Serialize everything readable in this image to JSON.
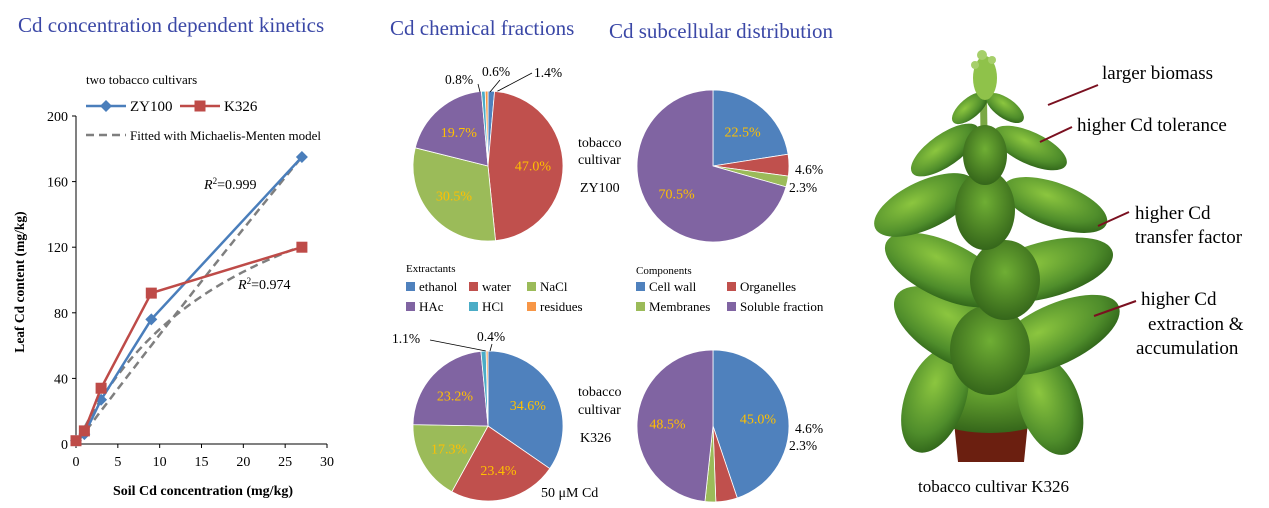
{
  "titles": {
    "kinetics": "Cd concentration dependent kinetics",
    "fractions": "Cd chemical fractions",
    "subcellular": "Cd subcellular  distribution"
  },
  "line_chart_labels": {
    "legend_title": "two tobacco cultivars",
    "fitted_label": "Fitted with Michaelis-Menten model",
    "r2_zy100": "0.999",
    "r2_k326": "0.974"
  },
  "pie_labels": {
    "extractants_title": "Extractants",
    "components_title": "Components",
    "cultivar_word_1": "tobacco",
    "cultivar_word_2": "cultivar",
    "zy100": "ZY100",
    "k326": "K326",
    "treatment": "50 μM Cd"
  },
  "plant": {
    "annotations": [
      "larger biomass",
      "higher Cd tolerance",
      "higher Cd",
      "transfer factor",
      "higher Cd",
      "extraction &",
      "accumulation"
    ],
    "caption": "tobacco cultivar K326"
  },
  "colors": {
    "title": "#3a47a6",
    "zy100": "#4a7ebb",
    "k326": "#be4b48",
    "fitted": "#7f7f7f",
    "pie_blue": "#4f81bd",
    "pie_red": "#c0504d",
    "pie_green": "#9bbb59",
    "pie_purple": "#8064a2",
    "pie_teal": "#4bacc6",
    "pie_orange": "#f79646",
    "inside_label": "#ffc000"
  },
  "chart_data": [
    {
      "type": "line",
      "title": "",
      "xlabel": "Soil Cd concentration (mg/kg)",
      "ylabel": "Leaf Cd content (mg/kg)",
      "xlim": [
        0,
        30
      ],
      "ylim": [
        0,
        200
      ],
      "xticks": [
        0,
        5,
        10,
        15,
        20,
        25,
        30
      ],
      "yticks": [
        0,
        40,
        80,
        120,
        160,
        200
      ],
      "legend": "top-left",
      "series": [
        {
          "name": "ZY100",
          "x": [
            0,
            1,
            3,
            9,
            27
          ],
          "y": [
            2,
            6,
            27,
            76,
            175
          ],
          "marker": "diamond",
          "color": "#4a7ebb"
        },
        {
          "name": "K326",
          "x": [
            0,
            1,
            3,
            9,
            27
          ],
          "y": [
            2,
            8,
            34,
            92,
            120
          ],
          "marker": "square",
          "color": "#be4b48"
        },
        {
          "name": "Fitted with Michaelis-Menten model",
          "fit": true,
          "vmax": 4000,
          "km": 590,
          "color": "#7f7f7f"
        },
        {
          "name": "Fitted with Michaelis-Menten model",
          "fit": true,
          "vmax": 210,
          "km": 20,
          "color": "#7f7f7f"
        }
      ]
    },
    {
      "type": "pie",
      "title": "Cd chemical fractions - ZY100",
      "categories": [
        "ethanol",
        "water",
        "NaCl",
        "HAc",
        "HCl",
        "residues"
      ],
      "values": [
        1.4,
        47.0,
        30.5,
        19.7,
        0.8,
        0.6
      ],
      "labels": [
        "1.4%",
        "47.0%",
        "30.5%",
        "19.7%",
        "0.8%",
        "0.6%"
      ]
    },
    {
      "type": "pie",
      "title": "Cd chemical fractions - K326",
      "categories": [
        "ethanol",
        "water",
        "NaCl",
        "HAc",
        "HCl",
        "residues"
      ],
      "values": [
        34.6,
        23.4,
        17.3,
        23.2,
        1.1,
        0.4
      ],
      "labels": [
        "34.6%",
        "23.4%",
        "17.3%",
        "23.2%",
        "1.1%",
        "0.4%"
      ]
    },
    {
      "type": "pie",
      "title": "Cd subcellular distribution - ZY100",
      "categories": [
        "Cell wall",
        "Organelles",
        "Membranes",
        "Soluble fraction"
      ],
      "values": [
        22.5,
        4.6,
        2.3,
        70.5
      ],
      "labels": [
        "22.5%",
        "4.6%",
        "2.3%",
        "70.5%"
      ]
    },
    {
      "type": "pie",
      "title": "Cd subcellular distribution - K326",
      "categories": [
        "Cell wall",
        "Organelles",
        "Membranes",
        "Soluble fraction"
      ],
      "values": [
        45.0,
        4.6,
        2.3,
        48.5
      ],
      "labels": [
        "45.0%",
        "4.6%",
        "2.3%",
        "48.5%"
      ]
    }
  ]
}
